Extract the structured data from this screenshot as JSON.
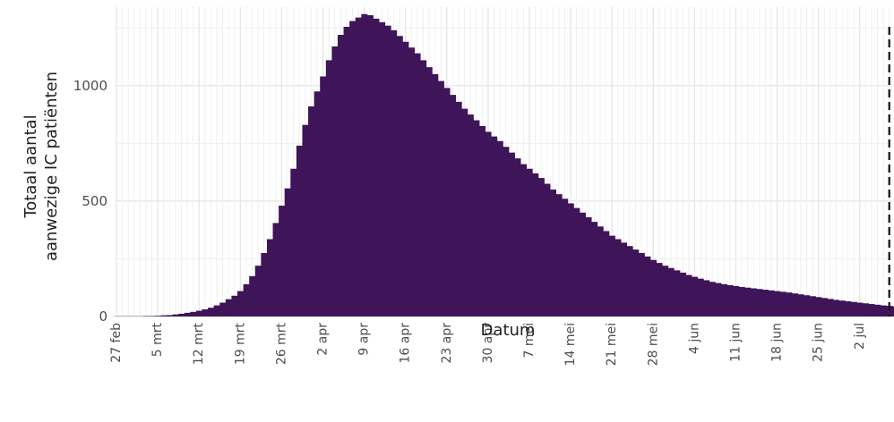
{
  "chart_data": {
    "type": "bar",
    "xlabel": "Datum",
    "ylabel_lines": [
      "Totaal aantal",
      "aanwezige IC patiënten"
    ],
    "start_date": "2020-02-27",
    "end_date": "2020-07-07",
    "ylim": [
      0,
      1340
    ],
    "y_ticks": [
      0,
      500,
      1000
    ],
    "x_tick_labels": [
      "27 feb",
      "5 mrt",
      "12 mrt",
      "19 mrt",
      "26 mrt",
      "2 apr",
      "9 apr",
      "16 apr",
      "23 apr",
      "30 apr",
      "7 mei",
      "14 mei",
      "21 mei",
      "28 mei",
      "4 jun",
      "11 jun",
      "18 jun",
      "25 jun",
      "2 jul"
    ],
    "bar_color": "#3f1458",
    "grid": true,
    "reference_line": {
      "date": "2020-07-07",
      "style": "dashed"
    },
    "values": [
      1,
      1,
      1,
      1,
      1,
      2,
      2,
      3,
      5,
      6,
      9,
      12,
      16,
      20,
      25,
      31,
      38,
      48,
      60,
      75,
      90,
      110,
      140,
      175,
      220,
      275,
      335,
      405,
      480,
      555,
      640,
      740,
      830,
      910,
      975,
      1040,
      1110,
      1170,
      1220,
      1255,
      1280,
      1295,
      1310,
      1305,
      1290,
      1275,
      1260,
      1240,
      1215,
      1190,
      1165,
      1140,
      1110,
      1080,
      1050,
      1020,
      990,
      960,
      930,
      900,
      875,
      850,
      825,
      800,
      780,
      760,
      735,
      710,
      685,
      660,
      640,
      620,
      600,
      575,
      550,
      530,
      510,
      490,
      470,
      450,
      430,
      410,
      390,
      370,
      350,
      335,
      320,
      305,
      290,
      275,
      260,
      245,
      232,
      220,
      210,
      200,
      190,
      180,
      172,
      164,
      157,
      150,
      145,
      140,
      136,
      132,
      128,
      125,
      122,
      119,
      116,
      113,
      110,
      107,
      104,
      100,
      96,
      92,
      88,
      84,
      80,
      76,
      72,
      69,
      66,
      63,
      60,
      57,
      54,
      51,
      48,
      46,
      44,
      42,
      40,
      38
    ]
  }
}
